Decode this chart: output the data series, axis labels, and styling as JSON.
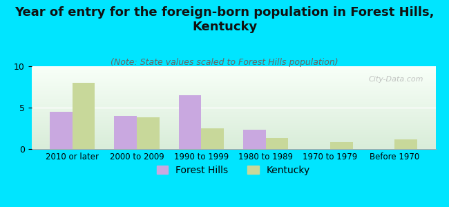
{
  "title": "Year of entry for the foreign-born population in Forest Hills,\nKentucky",
  "subtitle": "(Note: State values scaled to Forest Hills population)",
  "categories": [
    "2010 or later",
    "2000 to 2009",
    "1990 to 1999",
    "1980 to 1989",
    "1970 to 1979",
    "Before 1970"
  ],
  "forest_hills": [
    4.5,
    4.0,
    6.5,
    2.3,
    0,
    0
  ],
  "kentucky": [
    8.0,
    3.8,
    2.5,
    1.3,
    0.8,
    1.2
  ],
  "forest_hills_color": "#c9a8e0",
  "kentucky_color": "#c8d89a",
  "background_color": "#00e5ff",
  "plot_bg_top": "#f0fff0",
  "plot_bg_bottom": "#e8f5e9",
  "ylim": [
    0,
    10
  ],
  "yticks": [
    0,
    5,
    10
  ],
  "bar_width": 0.35,
  "title_fontsize": 13,
  "subtitle_fontsize": 9,
  "legend_fontsize": 10,
  "watermark": "City-Data.com"
}
